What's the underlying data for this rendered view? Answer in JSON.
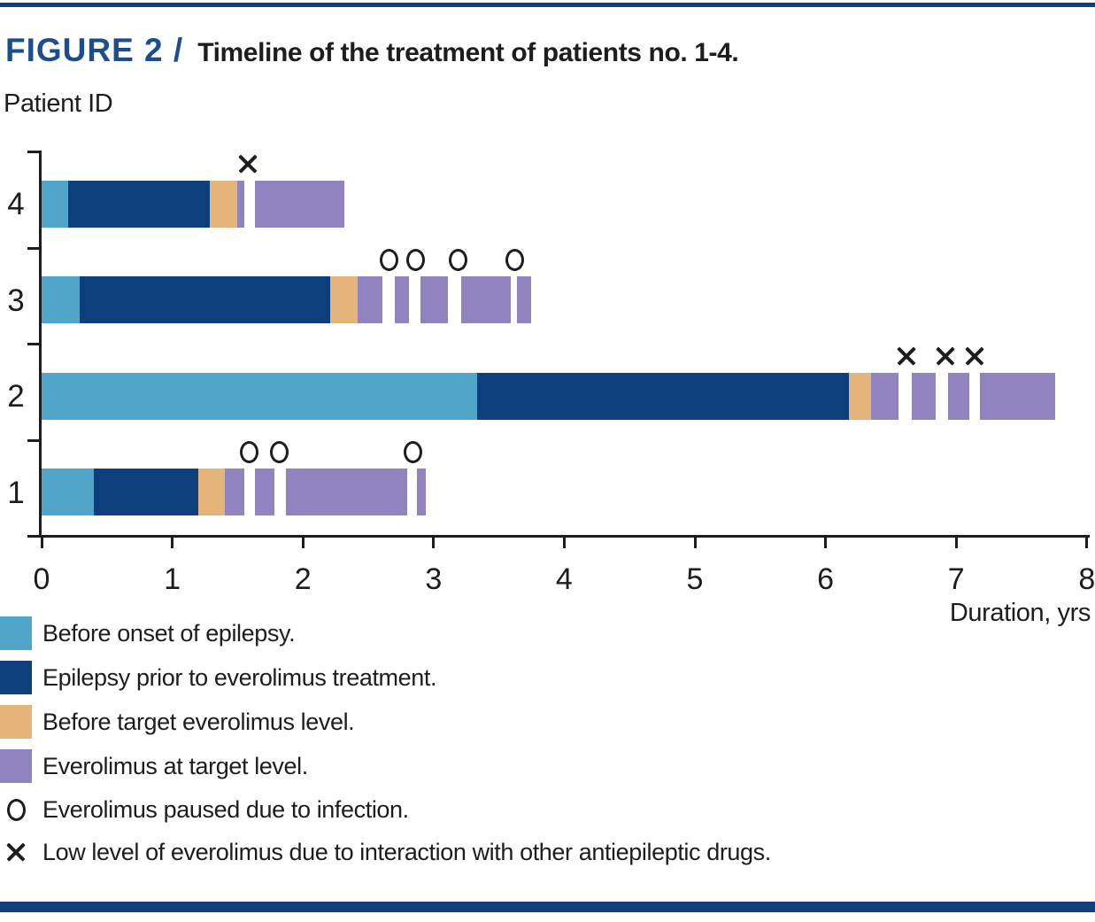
{
  "figure": {
    "label": "FIGURE 2 /",
    "title": "Timeline of the treatment of patients no. 1-4.",
    "accent_color": "#1c4e8c",
    "rule_color": "#0e4179",
    "text_color": "#1d1d1b"
  },
  "chart_data": {
    "type": "bar",
    "subtype": "horizontal-stacked-timeline",
    "y_axis_label": "Patient ID",
    "x_axis_label": "Duration, yrs",
    "xlim": [
      0,
      8
    ],
    "x_ticks": [
      "0",
      "1",
      "2",
      "3",
      "4",
      "5",
      "6",
      "7",
      "8"
    ],
    "grid": "off",
    "colors": {
      "before_onset": "#4fa6c9",
      "epilepsy_pre": "#0d3f7c",
      "before_target": "#e5b47b",
      "at_target": "#9083bf",
      "axis": "#1d1d1b"
    },
    "patients": [
      {
        "id": "4",
        "segments": [
          {
            "type": "before_onset",
            "start": 0,
            "end": 0.2
          },
          {
            "type": "epilepsy_pre",
            "start": 0.2,
            "end": 1.29
          },
          {
            "type": "before_target",
            "start": 1.29,
            "end": 1.5
          },
          {
            "type": "at_target",
            "start": 1.5,
            "end": 1.55
          },
          {
            "type": "at_target",
            "start": 1.63,
            "end": 2.32
          }
        ],
        "markers": [
          {
            "shape": "x",
            "x": 1.58
          }
        ]
      },
      {
        "id": "3",
        "segments": [
          {
            "type": "before_onset",
            "start": 0,
            "end": 0.29
          },
          {
            "type": "epilepsy_pre",
            "start": 0.29,
            "end": 2.21
          },
          {
            "type": "before_target",
            "start": 2.21,
            "end": 2.42
          },
          {
            "type": "at_target",
            "start": 2.42,
            "end": 2.61
          },
          {
            "type": "at_target",
            "start": 2.7,
            "end": 2.81
          },
          {
            "type": "at_target",
            "start": 2.9,
            "end": 3.11
          },
          {
            "type": "at_target",
            "start": 3.21,
            "end": 3.59
          },
          {
            "type": "at_target",
            "start": 3.64,
            "end": 3.75
          }
        ],
        "markers": [
          {
            "shape": "o",
            "x": 2.66
          },
          {
            "shape": "o",
            "x": 2.86
          },
          {
            "shape": "o",
            "x": 3.19
          },
          {
            "shape": "o",
            "x": 3.62
          }
        ]
      },
      {
        "id": "2",
        "segments": [
          {
            "type": "before_onset",
            "start": 0,
            "end": 3.33
          },
          {
            "type": "epilepsy_pre",
            "start": 3.33,
            "end": 6.18
          },
          {
            "type": "before_target",
            "start": 6.18,
            "end": 6.35
          },
          {
            "type": "at_target",
            "start": 6.35,
            "end": 6.56
          },
          {
            "type": "at_target",
            "start": 6.66,
            "end": 6.84
          },
          {
            "type": "at_target",
            "start": 6.94,
            "end": 7.1
          },
          {
            "type": "at_target",
            "start": 7.18,
            "end": 7.76
          }
        ],
        "markers": [
          {
            "shape": "x",
            "x": 6.62
          },
          {
            "shape": "x",
            "x": 6.92
          },
          {
            "shape": "x",
            "x": 7.14
          }
        ]
      },
      {
        "id": "1",
        "segments": [
          {
            "type": "before_onset",
            "start": 0,
            "end": 0.4
          },
          {
            "type": "epilepsy_pre",
            "start": 0.4,
            "end": 1.2
          },
          {
            "type": "before_target",
            "start": 1.2,
            "end": 1.4
          },
          {
            "type": "at_target",
            "start": 1.4,
            "end": 1.55
          },
          {
            "type": "at_target",
            "start": 1.63,
            "end": 1.78
          },
          {
            "type": "at_target",
            "start": 1.87,
            "end": 2.8
          },
          {
            "type": "at_target",
            "start": 2.87,
            "end": 2.94
          }
        ],
        "markers": [
          {
            "shape": "o",
            "x": 1.59
          },
          {
            "shape": "o",
            "x": 1.82
          },
          {
            "shape": "o",
            "x": 2.84
          }
        ]
      }
    ]
  },
  "legend": {
    "items": [
      {
        "swatch": "before_onset",
        "label": "Before onset of epilepsy."
      },
      {
        "swatch": "epilepsy_pre",
        "label": "Epilepsy prior to everolimus treatment."
      },
      {
        "swatch": "before_target",
        "label": "Before target everolimus level."
      },
      {
        "swatch": "at_target",
        "label": "Everolimus at target level."
      },
      {
        "marker": "o",
        "label": "Everolimus paused due to infection."
      },
      {
        "marker": "x",
        "label": "Low level of everolimus due to interaction with other antiepileptic drugs."
      }
    ]
  }
}
